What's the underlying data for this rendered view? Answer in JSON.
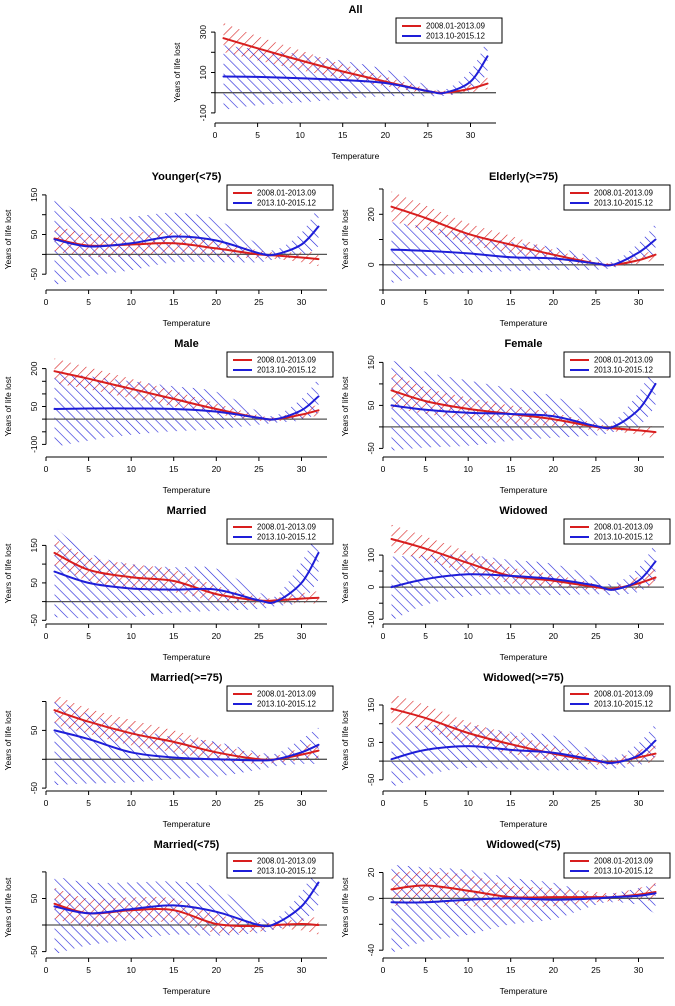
{
  "figure": {
    "ylabel": "Years of life lost",
    "xlabel": "Temperature",
    "xlim": [
      0,
      33
    ],
    "xticks": [
      0,
      5,
      10,
      15,
      20,
      25,
      30
    ],
    "x": [
      1,
      5,
      10,
      15,
      20,
      25,
      27,
      30,
      32
    ],
    "legend_labels": [
      "2008.01-2013.09",
      "2013.10-2015.12"
    ],
    "colors": {
      "red": "#d81e1e",
      "blue": "#1e1ed8",
      "zero_line": "#555555",
      "axis": "#000000",
      "legend_border": "#000000",
      "legend_bg": "#ffffff"
    }
  },
  "chart_data": [
    {
      "type": "line",
      "title": "All",
      "ylim": [
        -150,
        350
      ],
      "yticks": [
        [
          -100,
          "-100"
        ],
        [
          0,
          ""
        ],
        [
          100,
          "100"
        ],
        [
          200,
          ""
        ],
        [
          300,
          "300"
        ]
      ],
      "red": {
        "line": [
          270,
          220,
          160,
          105,
          55,
          8,
          0,
          20,
          45
        ],
        "upper": [
          345,
          280,
          210,
          140,
          80,
          20,
          10,
          40,
          75
        ],
        "lower": [
          200,
          160,
          112,
          70,
          32,
          -5,
          -10,
          2,
          18
        ]
      },
      "blue": {
        "line": [
          80,
          78,
          72,
          63,
          48,
          8,
          0,
          55,
          180
        ],
        "upper": [
          235,
          215,
          190,
          158,
          115,
          35,
          15,
          110,
          265
        ],
        "lower": [
          -85,
          -62,
          -48,
          -32,
          -18,
          -18,
          -15,
          10,
          95
        ]
      }
    },
    {
      "type": "line",
      "title": "Younger(<75)",
      "ylim": [
        -90,
        165
      ],
      "yticks": [
        [
          -50,
          "-50"
        ],
        [
          0,
          ""
        ],
        [
          50,
          "50"
        ],
        [
          100,
          ""
        ],
        [
          150,
          "150"
        ]
      ],
      "red": {
        "line": [
          40,
          22,
          25,
          28,
          15,
          0,
          -3,
          -8,
          -12
        ],
        "upper": [
          75,
          52,
          55,
          55,
          35,
          10,
          5,
          5,
          8
        ],
        "lower": [
          8,
          -6,
          -5,
          0,
          -5,
          -10,
          -12,
          -20,
          -30
        ]
      },
      "blue": {
        "line": [
          38,
          20,
          28,
          45,
          35,
          3,
          0,
          25,
          70
        ],
        "upper": [
          148,
          95,
          95,
          105,
          88,
          25,
          12,
          55,
          122
        ],
        "lower": [
          -78,
          -55,
          -40,
          -20,
          -20,
          -20,
          -12,
          -5,
          20
        ]
      }
    },
    {
      "type": "line",
      "title": "Elderly(>=75)",
      "ylim": [
        -100,
        300
      ],
      "yticks": [
        [
          -100,
          ""
        ],
        [
          0,
          "0"
        ],
        [
          100,
          ""
        ],
        [
          200,
          "200"
        ],
        [
          300,
          ""
        ]
      ],
      "red": {
        "line": [
          230,
          185,
          122,
          80,
          40,
          5,
          0,
          18,
          40
        ],
        "upper": [
          290,
          235,
          165,
          115,
          60,
          15,
          8,
          35,
          62
        ],
        "lower": [
          172,
          135,
          82,
          46,
          20,
          -6,
          -8,
          4,
          20
        ]
      },
      "blue": {
        "line": [
          60,
          55,
          45,
          30,
          25,
          5,
          0,
          48,
          100
        ],
        "upper": [
          168,
          150,
          120,
          90,
          70,
          30,
          12,
          85,
          162
        ],
        "lower": [
          -72,
          -45,
          -32,
          -26,
          -20,
          -20,
          -12,
          12,
          45
        ]
      }
    },
    {
      "type": "line",
      "title": "Male",
      "ylim": [
        -150,
        250
      ],
      "yticks": [
        [
          -100,
          "-100"
        ],
        [
          -50,
          ""
        ],
        [
          0,
          ""
        ],
        [
          50,
          "50"
        ],
        [
          100,
          ""
        ],
        [
          150,
          ""
        ],
        [
          200,
          "200"
        ]
      ],
      "red": {
        "line": [
          190,
          160,
          120,
          80,
          40,
          5,
          0,
          18,
          35
        ],
        "upper": [
          240,
          205,
          160,
          112,
          62,
          15,
          8,
          35,
          58
        ],
        "lower": [
          142,
          118,
          82,
          50,
          20,
          -6,
          -8,
          2,
          14
        ]
      },
      "blue": {
        "line": [
          40,
          42,
          42,
          40,
          30,
          5,
          0,
          35,
          90
        ],
        "upper": [
          185,
          170,
          150,
          130,
          108,
          30,
          15,
          80,
          162
        ],
        "lower": [
          -110,
          -85,
          -62,
          -48,
          -40,
          -22,
          -14,
          -5,
          25
        ]
      }
    },
    {
      "type": "line",
      "title": "Female",
      "ylim": [
        -70,
        165
      ],
      "yticks": [
        [
          -50,
          "-50"
        ],
        [
          0,
          ""
        ],
        [
          50,
          "50"
        ],
        [
          100,
          ""
        ],
        [
          150,
          "150"
        ]
      ],
      "red": {
        "line": [
          85,
          60,
          42,
          30,
          18,
          0,
          -3,
          -8,
          -12
        ],
        "upper": [
          128,
          92,
          68,
          50,
          33,
          8,
          3,
          0,
          3
        ],
        "lower": [
          45,
          30,
          18,
          8,
          2,
          -8,
          -10,
          -18,
          -28
        ]
      },
      "blue": {
        "line": [
          50,
          40,
          33,
          30,
          25,
          2,
          0,
          40,
          100
        ],
        "upper": [
          155,
          128,
          108,
          90,
          72,
          25,
          12,
          80,
          152
        ],
        "lower": [
          -55,
          -48,
          -44,
          -32,
          -25,
          -20,
          -12,
          2,
          48
        ]
      }
    },
    {
      "type": "line",
      "title": "Married",
      "ylim": [
        -60,
        210
      ],
      "yticks": [
        [
          -50,
          "-50"
        ],
        [
          0,
          ""
        ],
        [
          50,
          "50"
        ],
        [
          100,
          ""
        ],
        [
          150,
          "150"
        ]
      ],
      "red": {
        "line": [
          130,
          85,
          65,
          55,
          20,
          3,
          3,
          8,
          10
        ],
        "upper": [
          168,
          120,
          100,
          85,
          42,
          12,
          10,
          22,
          28
        ],
        "lower": [
          95,
          55,
          32,
          25,
          0,
          -8,
          -6,
          -4,
          -6
        ]
      },
      "blue": {
        "line": [
          80,
          50,
          35,
          32,
          32,
          3,
          0,
          50,
          130
        ],
        "upper": [
          200,
          130,
          100,
          92,
          88,
          25,
          15,
          105,
          200
        ],
        "lower": [
          -42,
          -45,
          -42,
          -30,
          -25,
          -20,
          -12,
          0,
          58
        ]
      }
    },
    {
      "type": "line",
      "title": "Widowed",
      "ylim": [
        -115,
        200
      ],
      "yticks": [
        [
          -100,
          "-100"
        ],
        [
          -50,
          ""
        ],
        [
          0,
          "0"
        ],
        [
          50,
          ""
        ],
        [
          100,
          "100"
        ]
      ],
      "red": {
        "line": [
          150,
          120,
          75,
          35,
          20,
          0,
          -5,
          12,
          30
        ],
        "upper": [
          195,
          158,
          110,
          62,
          40,
          10,
          2,
          32,
          56
        ],
        "lower": [
          108,
          85,
          42,
          12,
          0,
          -10,
          -12,
          -6,
          5
        ]
      },
      "blue": {
        "line": [
          0,
          25,
          40,
          35,
          25,
          5,
          -8,
          20,
          80
        ],
        "upper": [
          95,
          100,
          100,
          85,
          72,
          30,
          10,
          60,
          140
        ],
        "lower": [
          -105,
          -55,
          -28,
          -22,
          -25,
          -22,
          -25,
          -15,
          22
        ]
      }
    },
    {
      "type": "line",
      "title": "Married(>=75)",
      "ylim": [
        -55,
        120
      ],
      "yticks": [
        [
          -50,
          "-50"
        ],
        [
          0,
          ""
        ],
        [
          50,
          "50"
        ],
        [
          100,
          ""
        ]
      ],
      "red": {
        "line": [
          85,
          65,
          45,
          30,
          12,
          0,
          0,
          8,
          15
        ],
        "upper": [
          112,
          88,
          68,
          50,
          28,
          8,
          6,
          20,
          32
        ],
        "lower": [
          60,
          44,
          24,
          12,
          -2,
          -8,
          -6,
          -2,
          0
        ]
      },
      "blue": {
        "line": [
          50,
          35,
          12,
          3,
          0,
          -2,
          0,
          12,
          25
        ],
        "upper": [
          105,
          78,
          55,
          38,
          30,
          12,
          10,
          35,
          55
        ],
        "lower": [
          -45,
          -42,
          -40,
          -34,
          -30,
          -18,
          -12,
          -8,
          -8
        ]
      }
    },
    {
      "type": "line",
      "title": "Widowed(>=75)",
      "ylim": [
        -80,
        190
      ],
      "yticks": [
        [
          -50,
          "-50"
        ],
        [
          0,
          ""
        ],
        [
          50,
          "50"
        ],
        [
          100,
          ""
        ],
        [
          150,
          "150"
        ]
      ],
      "red": {
        "line": [
          140,
          115,
          75,
          45,
          20,
          0,
          -3,
          10,
          20
        ],
        "upper": [
          180,
          150,
          105,
          72,
          40,
          10,
          4,
          28,
          46
        ],
        "lower": [
          100,
          82,
          45,
          20,
          2,
          -10,
          -10,
          -6,
          -4
        ]
      },
      "blue": {
        "line": [
          5,
          30,
          40,
          30,
          22,
          2,
          -5,
          15,
          55
        ],
        "upper": [
          88,
          95,
          95,
          78,
          68,
          25,
          8,
          48,
          100
        ],
        "lower": [
          -70,
          -38,
          -18,
          -22,
          -25,
          -22,
          -20,
          -12,
          12
        ]
      }
    },
    {
      "type": "line",
      "title": "Married(<75)",
      "ylim": [
        -62,
        128
      ],
      "yticks": [
        [
          -50,
          "-50"
        ],
        [
          0,
          ""
        ],
        [
          50,
          "50"
        ],
        [
          100,
          ""
        ]
      ],
      "red": {
        "line": [
          40,
          22,
          28,
          28,
          2,
          -2,
          0,
          2,
          0
        ],
        "upper": [
          70,
          50,
          52,
          50,
          20,
          6,
          5,
          12,
          15
        ],
        "lower": [
          12,
          -3,
          3,
          5,
          -15,
          -12,
          -8,
          -10,
          -18
        ]
      },
      "blue": {
        "line": [
          35,
          22,
          30,
          37,
          25,
          0,
          3,
          35,
          80
        ],
        "upper": [
          92,
          80,
          80,
          82,
          70,
          15,
          12,
          62,
          122
        ],
        "lower": [
          -55,
          -38,
          -28,
          -18,
          -20,
          -15,
          -8,
          5,
          38
        ]
      }
    },
    {
      "type": "line",
      "title": "Widowed(<75)",
      "ylim": [
        -46,
        32
      ],
      "yticks": [
        [
          -40,
          "-40"
        ],
        [
          -20,
          ""
        ],
        [
          0,
          "0"
        ],
        [
          20,
          "20"
        ]
      ],
      "red": {
        "line": [
          7,
          10,
          6,
          1,
          1,
          1,
          1,
          3,
          5
        ],
        "upper": [
          20,
          21,
          18,
          10,
          8,
          5,
          4,
          8,
          12
        ],
        "lower": [
          -6,
          -3,
          -6,
          -7,
          -6,
          -3,
          -2,
          -1,
          -2
        ]
      },
      "blue": {
        "line": [
          -3,
          -3,
          -1,
          0,
          -1,
          0,
          1,
          2,
          4
        ],
        "upper": [
          26,
          24,
          22,
          16,
          12,
          3,
          4,
          8,
          11
        ],
        "lower": [
          -42,
          -33,
          -28,
          -20,
          -16,
          -5,
          -3,
          -5,
          -12
        ]
      }
    }
  ]
}
